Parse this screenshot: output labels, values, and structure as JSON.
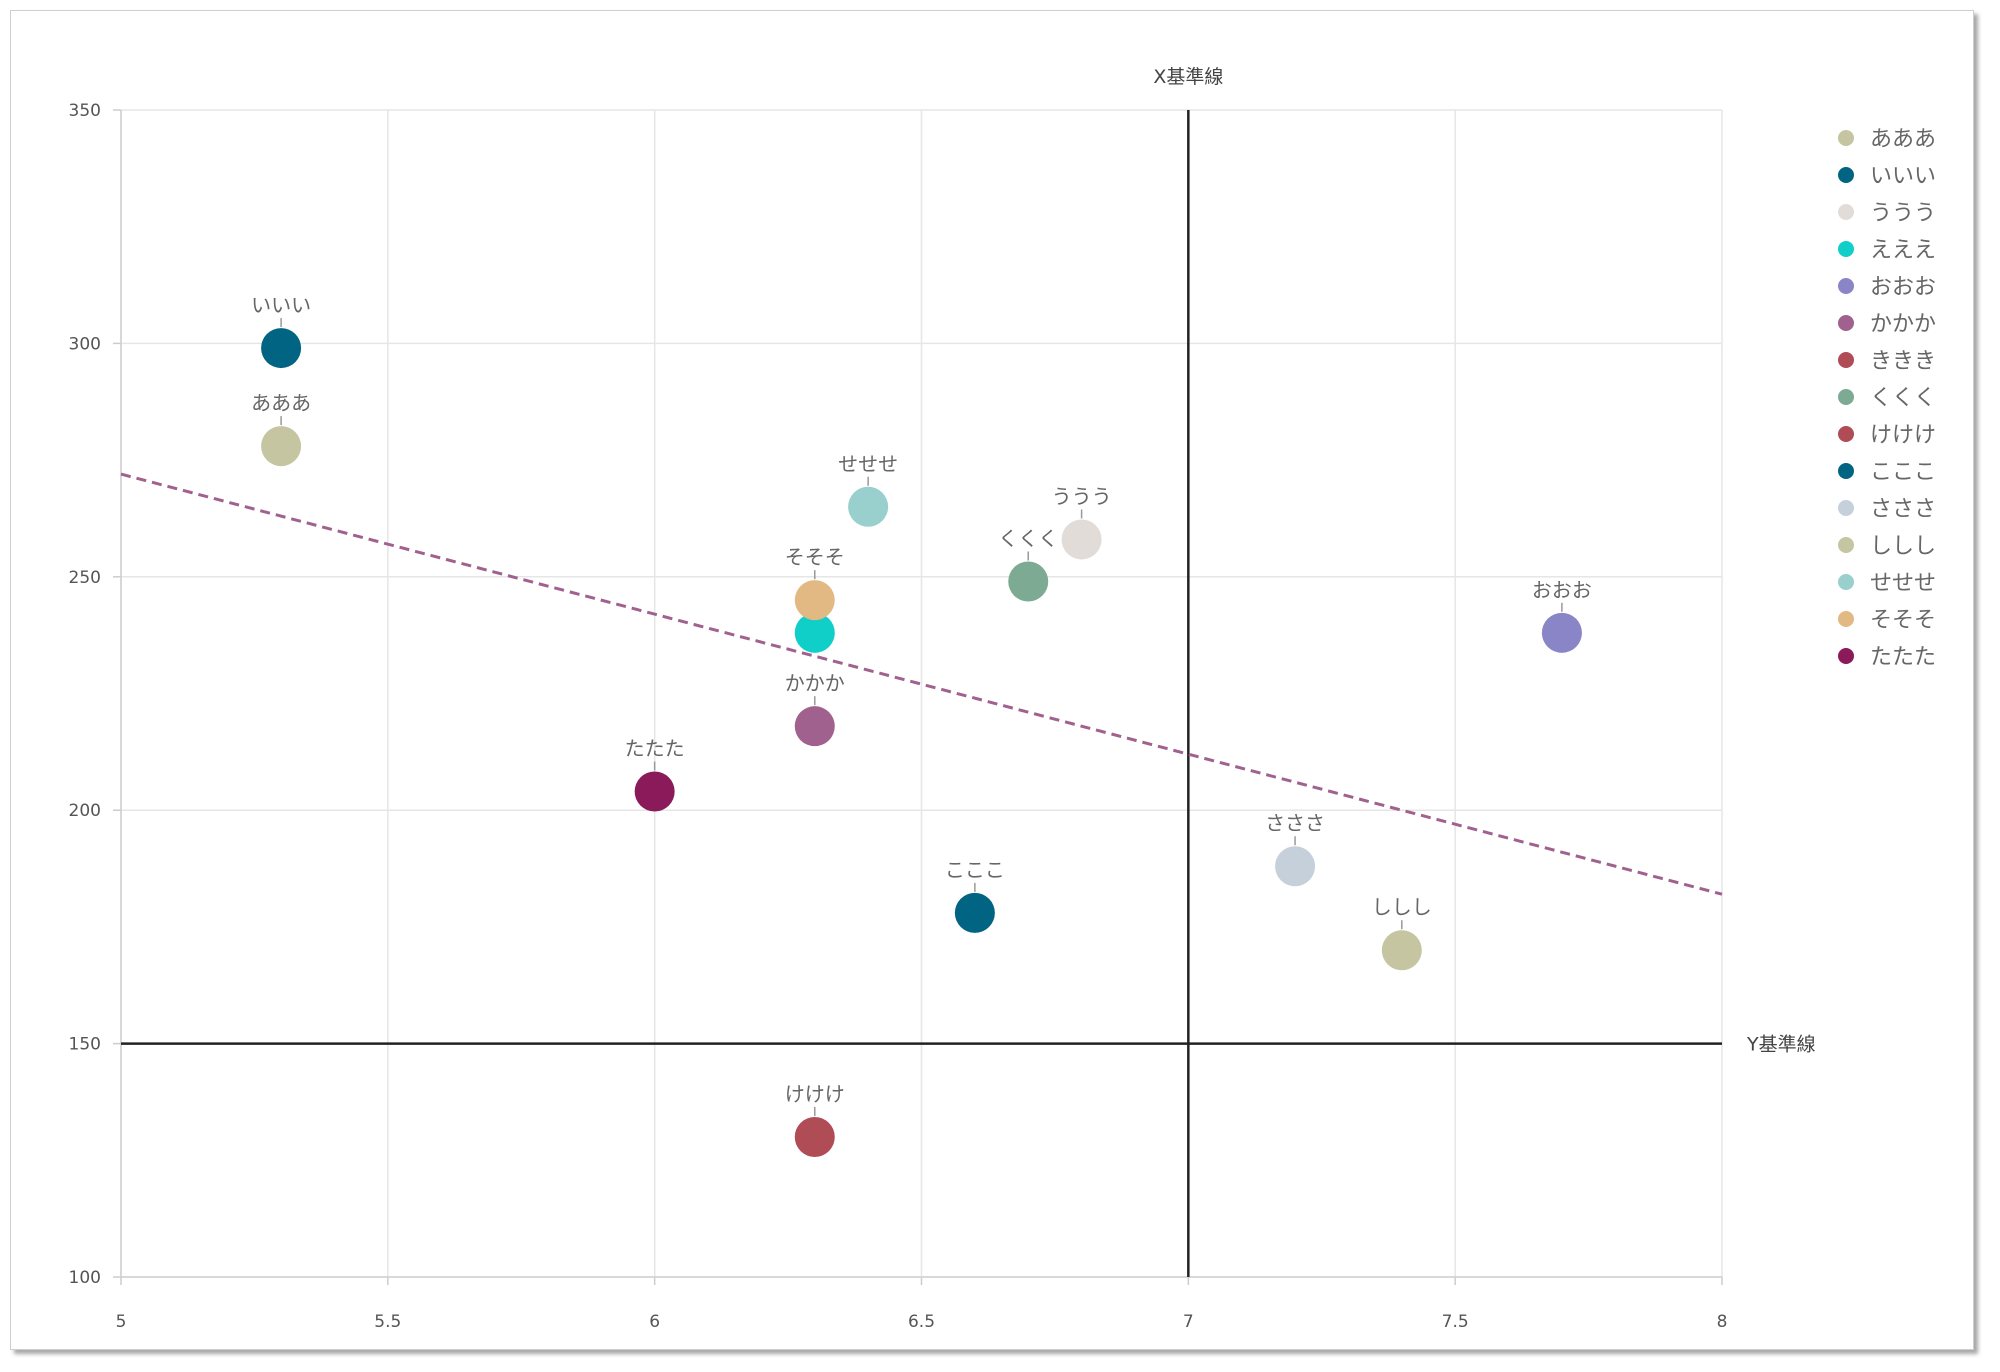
{
  "chart_data": {
    "type": "scatter",
    "xlim": [
      5,
      8
    ],
    "ylim": [
      100,
      350
    ],
    "x_ticks": [
      "5",
      "5.5",
      "6",
      "6.5",
      "7",
      "7.5",
      "8"
    ],
    "y_ticks": [
      "100",
      "150",
      "200",
      "250",
      "300",
      "350"
    ],
    "grid": true,
    "legend_position": "right",
    "reference_lines": {
      "x": {
        "label": "X基準線",
        "value": 7
      },
      "y": {
        "label": "Y基準線",
        "value": 150
      }
    },
    "trend_line": {
      "style": "dashed",
      "color": "#a0618f",
      "start": [
        5,
        272
      ],
      "end": [
        8,
        182
      ]
    },
    "series": [
      {
        "name": "あああ",
        "color": "#c5c5a2",
        "x": 5.3,
        "y": 278
      },
      {
        "name": "いいい",
        "color": "#006482",
        "x": 5.3,
        "y": 299
      },
      {
        "name": "ううう",
        "color": "#e2dcd8",
        "x": 6.8,
        "y": 258
      },
      {
        "name": "えええ",
        "color": "#10cfc9",
        "x": 6.3,
        "y": 238,
        "hide_label": true
      },
      {
        "name": "おおお",
        "color": "#8a85c6",
        "x": 7.7,
        "y": 238
      },
      {
        "name": "かかか",
        "color": "#a0618f",
        "x": 6.3,
        "y": 218
      },
      {
        "name": "ききき",
        "color": "#b04c56"
      },
      {
        "name": "くくく",
        "color": "#7daa92",
        "x": 6.7,
        "y": 249
      },
      {
        "name": "けけけ",
        "color": "#b04c56",
        "x": 6.3,
        "y": 130
      },
      {
        "name": "こここ",
        "color": "#006482",
        "x": 6.6,
        "y": 178
      },
      {
        "name": "さささ",
        "color": "#c6d0db",
        "x": 7.2,
        "y": 188
      },
      {
        "name": "ししし",
        "color": "#c5c5a2",
        "x": 7.4,
        "y": 170
      },
      {
        "name": "せせせ",
        "color": "#99cfcd",
        "x": 6.4,
        "y": 265
      },
      {
        "name": "そそそ",
        "color": "#e3b983",
        "x": 6.3,
        "y": 245
      },
      {
        "name": "たたた",
        "color": "#8a1a5a",
        "x": 6.0,
        "y": 204
      }
    ]
  }
}
